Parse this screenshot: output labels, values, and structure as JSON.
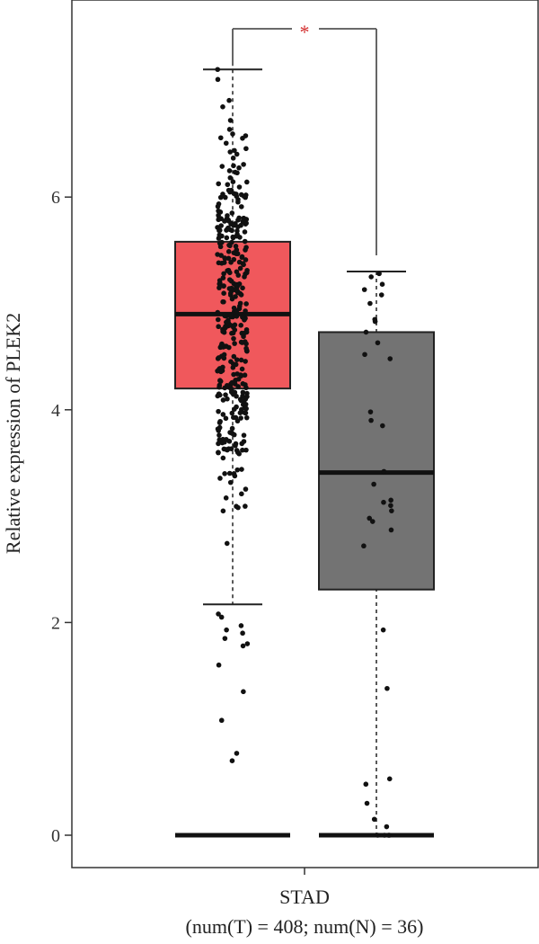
{
  "chart_data": {
    "type": "box",
    "ylabel": "Relative expression of PLEK2",
    "ylim": [
      -0.2,
      7.7
    ],
    "yticks": [
      0,
      2,
      4,
      6
    ],
    "category": "STAD",
    "sample_info": "(num(T) = 408; num(N) = 36)",
    "significance": "*",
    "colors": {
      "tumor": "#f0585c",
      "normal": "#737373",
      "sig": "#d32f2f"
    },
    "boxes": [
      {
        "group": "T",
        "color": "#f0585c",
        "min": 2.17,
        "q1": 4.2,
        "median": 4.9,
        "q3": 5.58,
        "max": 7.2,
        "n": 408,
        "points_zero": 30,
        "points_low": [
          0.7,
          0.77,
          1.08,
          1.35,
          1.6,
          1.78,
          1.8,
          1.85,
          1.9,
          1.93,
          1.97,
          2.05,
          2.08
        ]
      },
      {
        "group": "N",
        "color": "#737373",
        "min": 0.0,
        "q1": 2.31,
        "median": 3.41,
        "q3": 4.73,
        "max": 5.3,
        "n": 36,
        "points": [
          0.0,
          0.0,
          0.0,
          0.0,
          0.08,
          0.15,
          0.3,
          0.48,
          0.53,
          1.38,
          1.93,
          2.72,
          2.87,
          2.95,
          2.98,
          3.05,
          3.1,
          3.13,
          3.15,
          3.42,
          3.85,
          3.9,
          3.98,
          4.48,
          4.52,
          4.63,
          4.73,
          4.83,
          4.85,
          5.0,
          5.08,
          5.13,
          5.18,
          5.25,
          5.28,
          3.3
        ]
      }
    ]
  }
}
